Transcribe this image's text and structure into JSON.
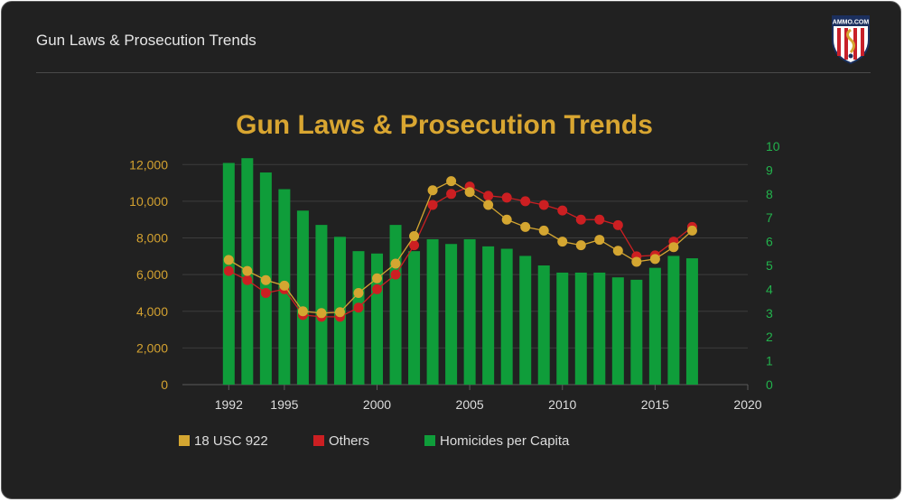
{
  "header": {
    "title": "Gun Laws & Prosecution Trends"
  },
  "logo": {
    "text": "AMMO.COM"
  },
  "colors": {
    "usc922": "#d4a631",
    "others": "#cc1f22",
    "homicides": "#0f9d3a",
    "title": "#d9a631"
  },
  "chart_data": {
    "type": "bar+line",
    "title": "Gun Laws & Prosecution Trends",
    "x_ticks": [
      1992,
      1995,
      2000,
      2005,
      2010,
      2015,
      2020
    ],
    "x_range": [
      1989.5,
      2020
    ],
    "y_left_ticks": [
      "0",
      "2,000",
      "4,000",
      "6,000",
      "8,000",
      "10,000",
      "12,000"
    ],
    "y_left_range": [
      0,
      13000
    ],
    "y_right_ticks": [
      "0",
      "1",
      "2",
      "3",
      "4",
      "5",
      "6",
      "7",
      "8",
      "9",
      "10"
    ],
    "y_right_range": [
      0,
      10
    ],
    "grid": true,
    "legend_position": "bottom",
    "series": [
      {
        "name": "18 USC 922",
        "type": "line",
        "axis": "left",
        "x": [
          1992,
          1993,
          1994,
          1995,
          1996,
          1997,
          1998,
          1999,
          2000,
          2001,
          2002,
          2003,
          2004,
          2005,
          2006,
          2007,
          2008,
          2009,
          2010,
          2011,
          2012,
          2013,
          2014,
          2015,
          2016,
          2017
        ],
        "values": [
          6800,
          6200,
          5700,
          5400,
          4000,
          3900,
          3950,
          5000,
          5800,
          6600,
          8100,
          10600,
          11100,
          10500,
          9800,
          9000,
          8600,
          8400,
          7800,
          7600,
          7900,
          7300,
          6700,
          6850,
          7500,
          8400
        ]
      },
      {
        "name": "Others",
        "type": "line",
        "axis": "left",
        "x": [
          1992,
          1993,
          1994,
          1995,
          1996,
          1997,
          1998,
          1999,
          2000,
          2001,
          2002,
          2003,
          2004,
          2005,
          2006,
          2007,
          2008,
          2009,
          2010,
          2011,
          2012,
          2013,
          2014,
          2015,
          2016,
          2017
        ],
        "values": [
          6200,
          5700,
          5000,
          5200,
          3800,
          3700,
          3700,
          4200,
          5200,
          6000,
          7600,
          9800,
          10400,
          10800,
          10300,
          10200,
          10000,
          9800,
          9500,
          9000,
          9000,
          8700,
          7000,
          7050,
          7800,
          8600
        ]
      },
      {
        "name": "Homicides per Capita",
        "type": "bar",
        "axis": "right",
        "x": [
          1992,
          1993,
          1994,
          1995,
          1996,
          1997,
          1998,
          1999,
          2000,
          2001,
          2002,
          2003,
          2004,
          2005,
          2006,
          2007,
          2008,
          2009,
          2010,
          2011,
          2012,
          2013,
          2014,
          2015,
          2016,
          2017
        ],
        "values": [
          9.3,
          9.5,
          8.9,
          8.2,
          7.3,
          6.7,
          6.2,
          5.6,
          5.5,
          6.7,
          5.6,
          6.1,
          5.9,
          6.1,
          5.8,
          5.7,
          5.4,
          5.0,
          4.7,
          4.7,
          4.7,
          4.5,
          4.4,
          4.9,
          5.4,
          5.3
        ]
      }
    ]
  }
}
